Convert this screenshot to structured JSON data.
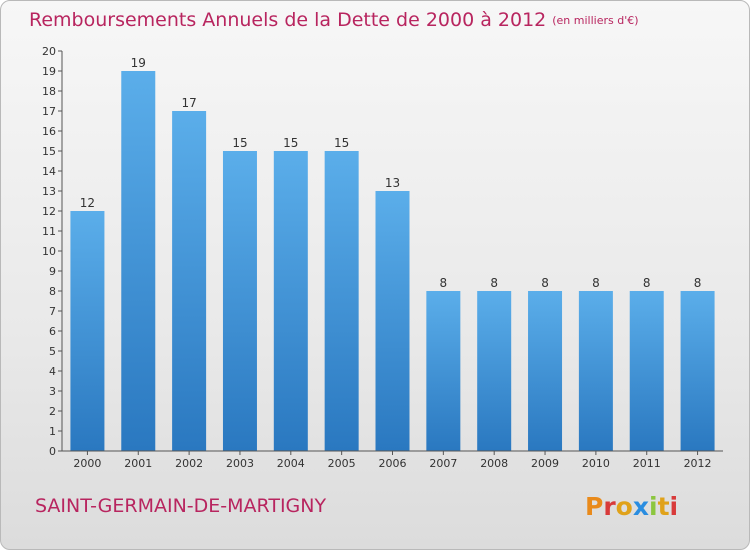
{
  "header": {
    "title": "Remboursements Annuels de la Dette de 2000 à 2012",
    "unit": "(en milliers d'€)"
  },
  "footer": {
    "town": "SAINT-GERMAIN-DE-MARTIGNY",
    "logo": "Proxiti"
  },
  "colors": {
    "title": "#b8255f",
    "bar_top": "#5baeea",
    "bar_bottom": "#2a78c0",
    "logo_letters": [
      "#e98a1b",
      "#d83a3a",
      "#e0a21a",
      "#2a8de0",
      "#8cc63f",
      "#e0a21a",
      "#d83a3a"
    ]
  },
  "chart_data": {
    "type": "bar",
    "title": "Remboursements Annuels de la Dette de 2000 à 2012",
    "categories": [
      "2000",
      "2001",
      "2002",
      "2003",
      "2004",
      "2005",
      "2006",
      "2007",
      "2008",
      "2009",
      "2010",
      "2011",
      "2012"
    ],
    "values": [
      12,
      19,
      17,
      15,
      15,
      15,
      13,
      8,
      8,
      8,
      8,
      8,
      8
    ],
    "ylim": [
      0,
      20
    ],
    "yticks": [
      0,
      1,
      2,
      3,
      4,
      5,
      6,
      7,
      8,
      9,
      10,
      11,
      12,
      13,
      14,
      15,
      16,
      17,
      18,
      19,
      20
    ],
    "grid": false,
    "legend": "none",
    "xlabel": "",
    "ylabel": ""
  }
}
